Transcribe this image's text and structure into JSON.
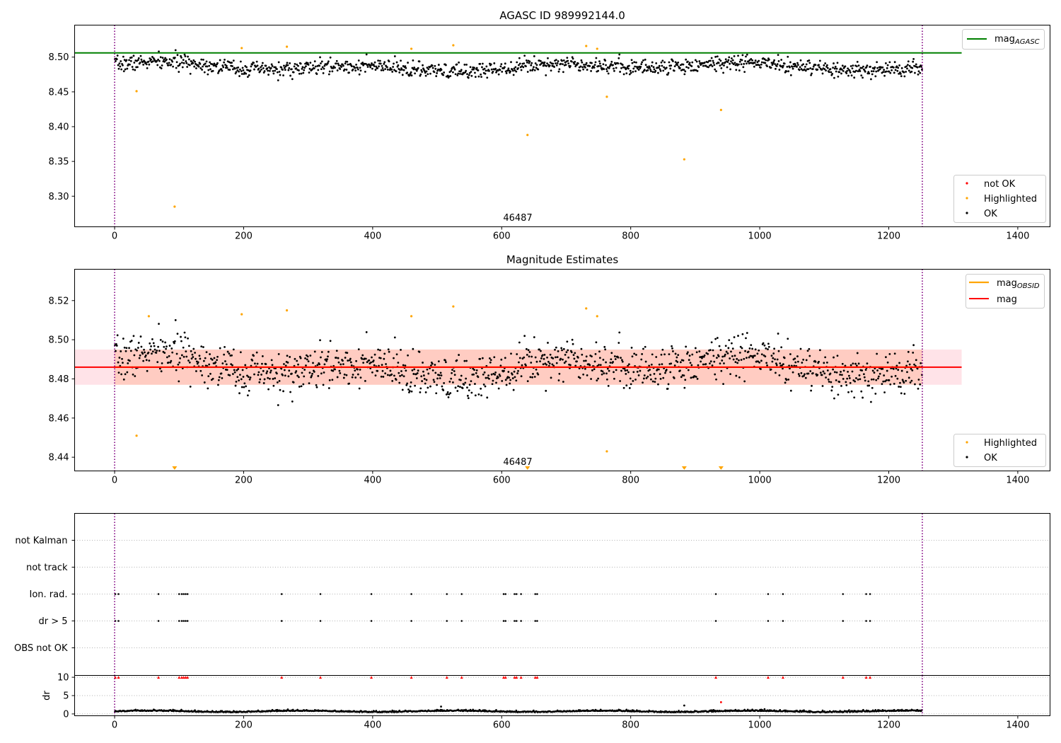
{
  "colors": {
    "ok": "#000000",
    "highlighted": "#ffa500",
    "not_ok": "#ff0000",
    "agasc_line": "#008000",
    "mag_line": "#ff0000",
    "band": "#ffc0cb",
    "band_overlay": "#ffa07a",
    "obs_boundary": "#800080",
    "grid": "#b0b0b0"
  },
  "chart_data": [
    {
      "id": "agasc_panel",
      "type": "scatter",
      "title": "AGASC ID 989992144.0",
      "obsid_label": "46487",
      "xlim": [
        -62,
        1450
      ],
      "ylim": [
        8.256,
        8.546
      ],
      "xticks": [
        0,
        200,
        400,
        600,
        800,
        1000,
        1200,
        1400
      ],
      "yticks": [
        8.3,
        8.35,
        8.4,
        8.45,
        8.5
      ],
      "ytick_labels": [
        "8.30",
        "8.35",
        "8.40",
        "8.45",
        "8.50"
      ],
      "mag_agasc": 8.506,
      "mag_agasc_x_range": [
        -62,
        1313
      ],
      "obs_boundaries": [
        0,
        1252
      ],
      "series": {
        "n_points": 1252,
        "baseline": 8.486,
        "variation": 0.0075,
        "noise": 0.0055,
        "seed": 7
      },
      "highlighted_points": [
        [
          34,
          8.451
        ],
        [
          93,
          8.285
        ],
        [
          197,
          8.513
        ],
        [
          267,
          8.515
        ],
        [
          460,
          8.512
        ],
        [
          525,
          8.517
        ],
        [
          640,
          8.388
        ],
        [
          731,
          8.516
        ],
        [
          748,
          8.512
        ],
        [
          763,
          8.443
        ],
        [
          883,
          8.353
        ],
        [
          940,
          8.424
        ]
      ],
      "legends": [
        {
          "name": "line-legend",
          "position": "top-right",
          "items": [
            {
              "label": "mag",
              "subscript": "AGASC",
              "kind": "line",
              "color": "#008000"
            }
          ]
        },
        {
          "name": "marker-legend",
          "position": "bottom-right",
          "items": [
            {
              "label": "not OK",
              "kind": "dot",
              "color": "#ff0000"
            },
            {
              "label": "Highlighted",
              "kind": "dot",
              "color": "#ffa500"
            },
            {
              "label": "OK",
              "kind": "dot",
              "color": "#000000"
            }
          ]
        }
      ]
    },
    {
      "id": "estimates_panel",
      "type": "scatter",
      "title": "Magnitude Estimates",
      "obsid_label": "46487",
      "xlim": [
        -62,
        1450
      ],
      "ylim": [
        8.433,
        8.536
      ],
      "xticks": [
        0,
        200,
        400,
        600,
        800,
        1000,
        1200,
        1400
      ],
      "yticks": [
        8.44,
        8.46,
        8.48,
        8.5,
        8.52
      ],
      "ytick_labels": [
        "8.44",
        "8.46",
        "8.48",
        "8.50",
        "8.52"
      ],
      "mag": 8.486,
      "mag_band": [
        8.477,
        8.495
      ],
      "mag_obsid_band": [
        8.477,
        8.495
      ],
      "mag_x_range": [
        -62,
        1313
      ],
      "obs_boundaries": [
        0,
        1252
      ],
      "highlighted_points": [
        [
          34,
          8.451
        ],
        [
          53,
          8.512
        ],
        [
          197,
          8.513
        ],
        [
          267,
          8.515
        ],
        [
          460,
          8.512
        ],
        [
          525,
          8.517
        ],
        [
          731,
          8.516
        ],
        [
          748,
          8.512
        ],
        [
          763,
          8.443
        ]
      ],
      "clipped_points_x": [
        93,
        640,
        883,
        940
      ],
      "legends": [
        {
          "name": "line-legend",
          "position": "top-right",
          "items": [
            {
              "label": "mag",
              "subscript": "OBSID",
              "kind": "line",
              "color": "#ffa500"
            },
            {
              "label": "mag",
              "subscript": "",
              "kind": "line",
              "color": "#ff0000"
            }
          ]
        },
        {
          "name": "marker-legend",
          "position": "bottom-right",
          "items": [
            {
              "label": "Highlighted",
              "kind": "dot",
              "color": "#ffa500"
            },
            {
              "label": "OK",
              "kind": "dot",
              "color": "#000000"
            }
          ]
        }
      ]
    },
    {
      "id": "flags_panel",
      "type": "scatter",
      "xlim": [
        -62,
        1450
      ],
      "categories": [
        "OBS not OK",
        "dr > 5",
        "Ion. rad.",
        "not track",
        "not Kalman"
      ],
      "flag_times": {
        "Ion. rad.": [
          1,
          6,
          68,
          100,
          104,
          107,
          110,
          113,
          259,
          319,
          398,
          460,
          515,
          538,
          603,
          606,
          620,
          623,
          630,
          652,
          655,
          932,
          1013,
          1036,
          1129,
          1165,
          1171
        ],
        "dr > 5": [
          1,
          6,
          68,
          100,
          104,
          107,
          110,
          113,
          259,
          319,
          398,
          460,
          515,
          538,
          603,
          606,
          620,
          623,
          630,
          652,
          655,
          932,
          1013,
          1036,
          1129,
          1165,
          1171
        ]
      },
      "obs_boundaries": [
        0,
        1252
      ]
    },
    {
      "id": "dr_panel",
      "type": "scatter",
      "ylabel": "dr",
      "xlim": [
        -62,
        1450
      ],
      "ylim": [
        -0.5,
        10.5
      ],
      "xticks": [
        0,
        200,
        400,
        600,
        800,
        1000,
        1200,
        1400
      ],
      "yticks": [
        0,
        5,
        10
      ],
      "ytick_labels": [
        "0",
        "5",
        "10"
      ],
      "series": {
        "n_points": 1252,
        "baseline": 0.6,
        "variation": 0.3,
        "seed": 11
      },
      "outliers": [
        [
          506,
          2.0
        ],
        [
          883,
          2.3
        ],
        [
          940,
          3.2
        ]
      ],
      "capped_x": [
        1,
        6,
        68,
        100,
        104,
        107,
        110,
        113,
        259,
        319,
        398,
        460,
        515,
        538,
        603,
        606,
        620,
        623,
        630,
        652,
        655,
        932,
        1013,
        1036,
        1129,
        1165,
        1171
      ],
      "obs_boundaries": [
        0,
        1252
      ]
    }
  ]
}
